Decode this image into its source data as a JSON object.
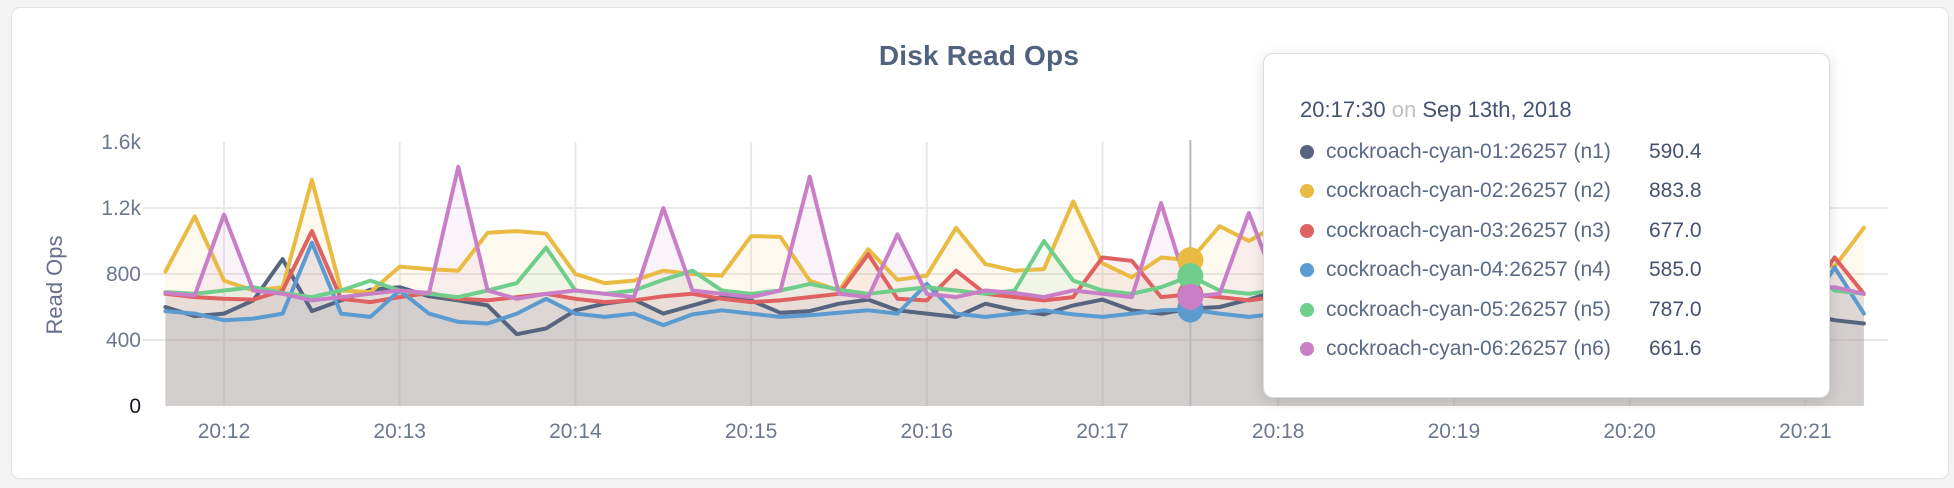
{
  "chart_data": {
    "type": "line",
    "title": "Disk Read Ops",
    "ylabel": "Read Ops",
    "xlabel": "",
    "grid": true,
    "legend_position": "tooltip",
    "ylim": [
      0,
      1600
    ],
    "x_start_time": "20:11:40",
    "x_step_seconds": 10,
    "x_start_min": 11.666667,
    "x_step_min": 0.1666667,
    "hover_index": 35,
    "hover_time_min": 17.5,
    "y_ticks": [
      {
        "v": 0,
        "label": "0",
        "dark": true
      },
      {
        "v": 400,
        "label": "400"
      },
      {
        "v": 800,
        "label": "800"
      },
      {
        "v": 1200,
        "label": "1.2k"
      },
      {
        "v": 1600,
        "label": "1.6k"
      }
    ],
    "x_ticks": [
      {
        "t": 12,
        "label": "20:12"
      },
      {
        "t": 13,
        "label": "20:13"
      },
      {
        "t": 14,
        "label": "20:14"
      },
      {
        "t": 15,
        "label": "20:15"
      },
      {
        "t": 16,
        "label": "20:16"
      },
      {
        "t": 17,
        "label": "20:17"
      },
      {
        "t": 18,
        "label": "20:18"
      },
      {
        "t": 19,
        "label": "20:19"
      },
      {
        "t": 20,
        "label": "20:20"
      },
      {
        "t": 21,
        "label": "20:21"
      }
    ],
    "series": [
      {
        "name": "cockroach-cyan-01:26257 (n1)",
        "color": "#56647F",
        "values": [
          600,
          545,
          560,
          640,
          890,
          575,
          640,
          705,
          720,
          665,
          640,
          610,
          435,
          470,
          580,
          620,
          645,
          560,
          610,
          660,
          640,
          565,
          575,
          620,
          645,
          580,
          560,
          540,
          620,
          580,
          555,
          610,
          645,
          580,
          560,
          590.4,
          600,
          645,
          700,
          660,
          620,
          600,
          580,
          560,
          600,
          620,
          580,
          560,
          600,
          620,
          580,
          555,
          540,
          560,
          580,
          600,
          560,
          520,
          500
        ]
      },
      {
        "name": "cockroach-cyan-02:26257 (n2)",
        "color": "#EABB43",
        "values": [
          815,
          1150,
          760,
          700,
          720,
          1370,
          700,
          690,
          845,
          830,
          820,
          1050,
          1060,
          1045,
          800,
          745,
          760,
          820,
          800,
          790,
          1030,
          1025,
          760,
          700,
          950,
          765,
          790,
          1080,
          860,
          820,
          830,
          1240,
          865,
          780,
          900,
          883.8,
          1090,
          1000,
          1100,
          905,
          850,
          880,
          920,
          860,
          840,
          880,
          915,
          860,
          840,
          880,
          900,
          860,
          840,
          880,
          920,
          880,
          860,
          845,
          1080
        ]
      },
      {
        "name": "cockroach-cyan-03:26257 (n3)",
        "color": "#E06161",
        "values": [
          680,
          660,
          650,
          645,
          700,
          1060,
          650,
          630,
          660,
          685,
          650,
          640,
          660,
          680,
          650,
          630,
          640,
          665,
          680,
          650,
          630,
          640,
          660,
          680,
          920,
          650,
          640,
          820,
          680,
          660,
          640,
          660,
          900,
          880,
          660,
          677,
          660,
          640,
          665,
          680,
          650,
          640,
          660,
          680,
          650,
          640,
          660,
          680,
          650,
          640,
          660,
          680,
          650,
          640,
          660,
          680,
          650,
          900,
          680
        ]
      },
      {
        "name": "cockroach-cyan-04:26257 (n4)",
        "color": "#5B9BD0",
        "values": [
          575,
          560,
          520,
          530,
          560,
          990,
          560,
          540,
          700,
          560,
          510,
          500,
          560,
          650,
          560,
          540,
          560,
          490,
          555,
          580,
          560,
          540,
          550,
          565,
          580,
          560,
          740,
          560,
          540,
          560,
          580,
          555,
          540,
          560,
          580,
          585,
          560,
          540,
          560,
          580,
          555,
          540,
          560,
          580,
          560,
          540,
          555,
          580,
          560,
          540,
          560,
          580,
          555,
          540,
          560,
          580,
          560,
          840,
          560
        ]
      },
      {
        "name": "cockroach-cyan-05:26257 (n5)",
        "color": "#6FCE8C",
        "values": [
          690,
          680,
          700,
          720,
          685,
          660,
          700,
          760,
          700,
          680,
          660,
          700,
          745,
          960,
          700,
          680,
          700,
          765,
          820,
          700,
          680,
          700,
          740,
          705,
          680,
          700,
          720,
          700,
          680,
          700,
          1000,
          760,
          700,
          680,
          720,
          787,
          700,
          680,
          705,
          720,
          700,
          680,
          700,
          720,
          700,
          680,
          700,
          720,
          700,
          680,
          700,
          720,
          700,
          680,
          700,
          720,
          830,
          700,
          680
        ]
      },
      {
        "name": "cockroach-cyan-06:26257 (n6)",
        "color": "#C97FC8",
        "values": [
          685,
          670,
          1160,
          700,
          680,
          640,
          660,
          680,
          700,
          685,
          1450,
          700,
          650,
          680,
          700,
          680,
          660,
          1200,
          700,
          680,
          660,
          700,
          1390,
          680,
          660,
          1040,
          680,
          660,
          700,
          685,
          660,
          700,
          680,
          660,
          1230,
          661.6,
          680,
          1170,
          700,
          680,
          660,
          700,
          685,
          660,
          700,
          680,
          660,
          700,
          680,
          660,
          700,
          685,
          660,
          700,
          680,
          660,
          700,
          720,
          680
        ]
      }
    ]
  },
  "tooltip": {
    "time": "20:17:30",
    "conjunction": "on",
    "date": "Sep 13th, 2018",
    "rows": [
      {
        "name": "cockroach-cyan-01:26257 (n1)",
        "value": "590.4",
        "color": "#56647F"
      },
      {
        "name": "cockroach-cyan-02:26257 (n2)",
        "value": "883.8",
        "color": "#EABB43"
      },
      {
        "name": "cockroach-cyan-03:26257 (n3)",
        "value": "677.0",
        "color": "#E06161"
      },
      {
        "name": "cockroach-cyan-04:26257 (n4)",
        "value": "585.0",
        "color": "#5B9BD0"
      },
      {
        "name": "cockroach-cyan-05:26257 (n5)",
        "value": "787.0",
        "color": "#6FCE8C"
      },
      {
        "name": "cockroach-cyan-06:26257 (n6)",
        "value": "661.6",
        "color": "#C97FC8"
      }
    ]
  },
  "style": {
    "grid_color": "#e9e9e9",
    "guideline_color": "#b9b9b9",
    "tick_color": "#6b7890",
    "zero_tick_color": "#15181d",
    "fill_opacity": 0.09
  }
}
